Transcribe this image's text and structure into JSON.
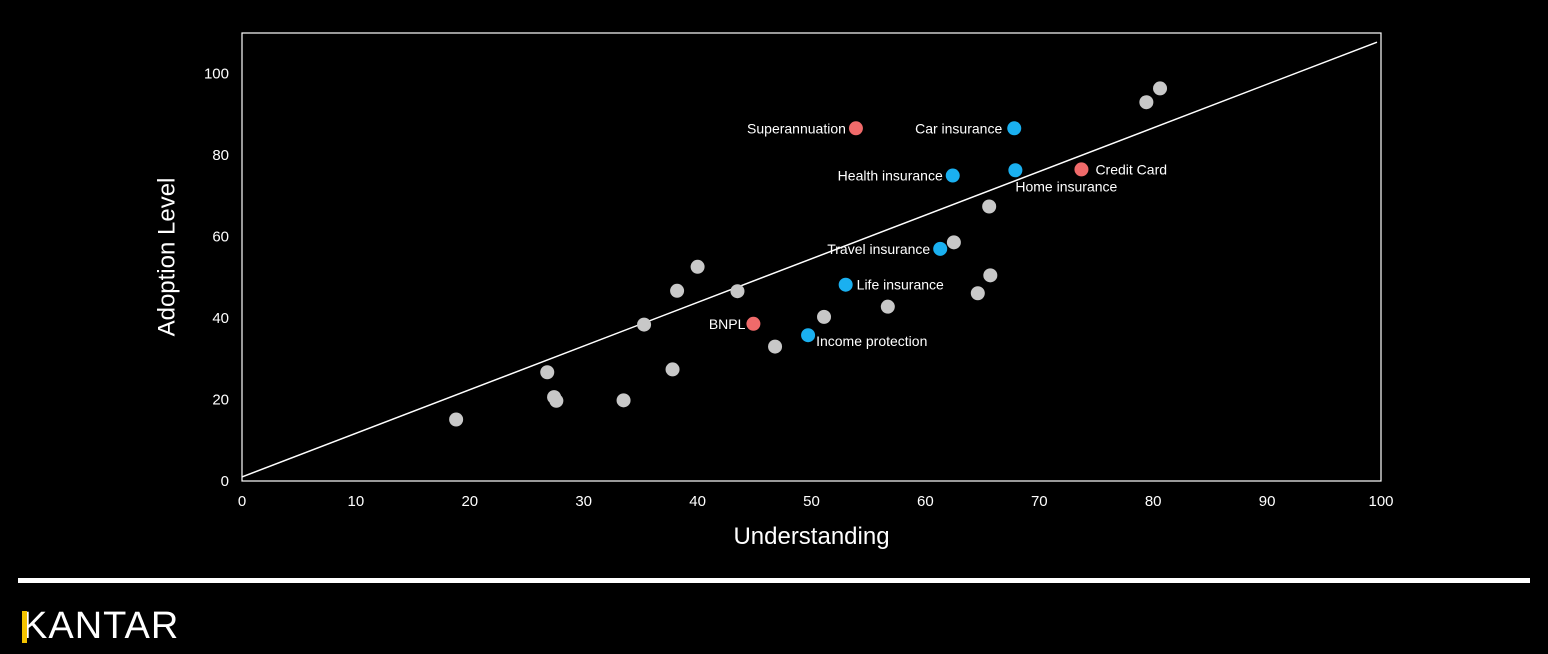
{
  "brand": {
    "name": "KANTAR",
    "accent": "#f3c300"
  },
  "chart_data": {
    "type": "scatter",
    "xlabel": "Understanding",
    "ylabel": "Adoption Level",
    "xlim": [
      0,
      100
    ],
    "ylim": [
      0,
      110
    ],
    "xticks": [
      0,
      10,
      20,
      30,
      40,
      50,
      60,
      70,
      80,
      90,
      100
    ],
    "yticks": [
      0,
      20,
      40,
      60,
      80,
      100
    ],
    "grid": false,
    "legend": "none",
    "colors": {
      "background": "#000000",
      "other": "#c8c8c8",
      "insurance": "#1ab0f0",
      "credit": "#f06a6a",
      "trend_line": "#ffffff"
    },
    "trend_line": {
      "x": [
        0,
        100
      ],
      "y": [
        1,
        108
      ]
    },
    "points": [
      {
        "x": 53.9,
        "y": 86.6,
        "label": "Superannuation",
        "category": "credit"
      },
      {
        "x": 67.8,
        "y": 86.6,
        "label": "Car insurance",
        "category": "insurance"
      },
      {
        "x": 62.4,
        "y": 75.0,
        "label": "Health insurance",
        "category": "insurance"
      },
      {
        "x": 67.9,
        "y": 76.3,
        "label": "Home insurance",
        "category": "insurance"
      },
      {
        "x": 73.7,
        "y": 76.5,
        "label": "Credit Card",
        "category": "credit"
      },
      {
        "x": 61.3,
        "y": 57.0,
        "label": "Travel insurance",
        "category": "insurance"
      },
      {
        "x": 53.0,
        "y": 48.2,
        "label": "Life insurance",
        "category": "insurance"
      },
      {
        "x": 44.9,
        "y": 38.6,
        "label": "BNPL",
        "category": "credit"
      },
      {
        "x": 49.7,
        "y": 35.8,
        "label": "Income protection",
        "category": "insurance"
      },
      {
        "x": 79.4,
        "y": 93.0,
        "label": "",
        "category": "other"
      },
      {
        "x": 80.6,
        "y": 96.4,
        "label": "",
        "category": "other"
      },
      {
        "x": 65.6,
        "y": 67.4,
        "label": "",
        "category": "other"
      },
      {
        "x": 62.5,
        "y": 58.6,
        "label": "",
        "category": "other"
      },
      {
        "x": 65.7,
        "y": 50.5,
        "label": "",
        "category": "other"
      },
      {
        "x": 64.6,
        "y": 46.1,
        "label": "",
        "category": "other"
      },
      {
        "x": 56.7,
        "y": 42.8,
        "label": "",
        "category": "other"
      },
      {
        "x": 51.1,
        "y": 40.3,
        "label": "",
        "category": "other"
      },
      {
        "x": 46.8,
        "y": 33.0,
        "label": "",
        "category": "other"
      },
      {
        "x": 43.5,
        "y": 46.6,
        "label": "",
        "category": "other"
      },
      {
        "x": 40.0,
        "y": 52.6,
        "label": "",
        "category": "other"
      },
      {
        "x": 38.2,
        "y": 46.7,
        "label": "",
        "category": "other"
      },
      {
        "x": 35.3,
        "y": 38.4,
        "label": "",
        "category": "other"
      },
      {
        "x": 37.8,
        "y": 27.4,
        "label": "",
        "category": "other"
      },
      {
        "x": 33.5,
        "y": 19.8,
        "label": "",
        "category": "other"
      },
      {
        "x": 26.8,
        "y": 26.7,
        "label": "",
        "category": "other"
      },
      {
        "x": 27.4,
        "y": 20.6,
        "label": "",
        "category": "other"
      },
      {
        "x": 27.6,
        "y": 19.7,
        "label": "",
        "category": "other"
      },
      {
        "x": 18.8,
        "y": 15.1,
        "label": "",
        "category": "other"
      }
    ]
  }
}
